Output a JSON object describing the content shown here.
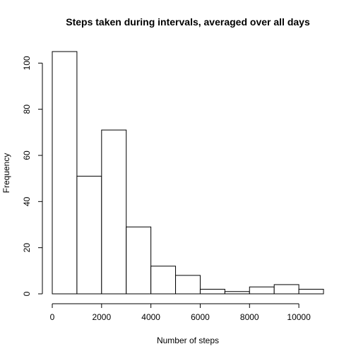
{
  "chart_data": {
    "type": "bar",
    "title": "Steps taken during intervals, averaged over all days",
    "xlabel": "Number of steps",
    "ylabel": "Frequency",
    "bin_edges": [
      0,
      1000,
      2000,
      3000,
      4000,
      5000,
      6000,
      7000,
      8000,
      9000,
      10000,
      11000
    ],
    "values": [
      105,
      51,
      71,
      29,
      12,
      8,
      2,
      1,
      3,
      4,
      2
    ],
    "xlim": [
      0,
      11000
    ],
    "ylim": [
      0,
      105
    ],
    "x_ticks": [
      0,
      2000,
      4000,
      6000,
      8000,
      10000
    ],
    "y_ticks": [
      0,
      20,
      40,
      60,
      80,
      100
    ],
    "grid": false
  }
}
